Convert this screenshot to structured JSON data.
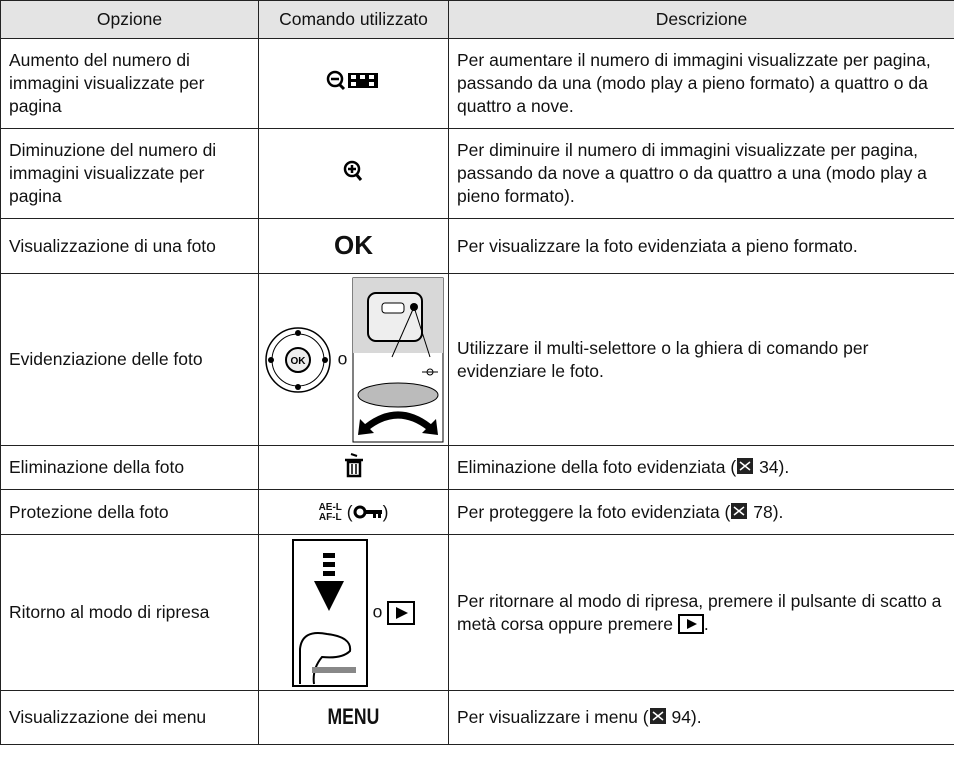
{
  "table": {
    "header": [
      "Opzione",
      "Comando utilizzato",
      "Descrizione"
    ],
    "rows": [
      {
        "option": "Aumento del numero di immagini visualizzate per pagina",
        "description": [
          "Per aumentare il numero di immagini visualizzate per pagina, passando da una (modo play a pieno formato) a quattro o da quattro a nove."
        ]
      },
      {
        "option": "Diminuzione del numero di immagini visualizzate per pagina",
        "description": [
          "Per diminuire il numero di immagini visualizzate per pagina, passando da nove a quattro o da quattro a una (modo play a pieno formato)."
        ]
      },
      {
        "option": "Visualizzazione di una foto",
        "command": [
          "OK"
        ],
        "description": [
          "Per visualizzare la foto evidenziata a pieno formato."
        ]
      },
      {
        "option": "Evidenziazione delle foto",
        "command": [
          "o"
        ],
        "description": [
          "Utilizzare il multi-selettore o la ghiera di comando per evidenziare le foto."
        ]
      },
      {
        "option": "Eliminazione della foto",
        "description": [
          "Eliminazione della foto evidenziata (",
          " 34)."
        ]
      },
      {
        "option": "Protezione della foto",
        "command": [
          "AE-L",
          "AF-L",
          "(",
          ")"
        ],
        "description": [
          "Per proteggere la foto evidenziata (",
          " 78)."
        ]
      },
      {
        "option": "Ritorno al modo di ripresa",
        "command": [
          "o"
        ],
        "description": [
          "Per ritornare al modo di ripresa, premere il pulsante di scatto a metà corsa oppure premere ",
          "."
        ]
      },
      {
        "option": "Visualizzazione dei menu",
        "command": [
          "MENU"
        ],
        "description": [
          "Per visualizzare i menu (",
          " 94)."
        ]
      }
    ]
  }
}
